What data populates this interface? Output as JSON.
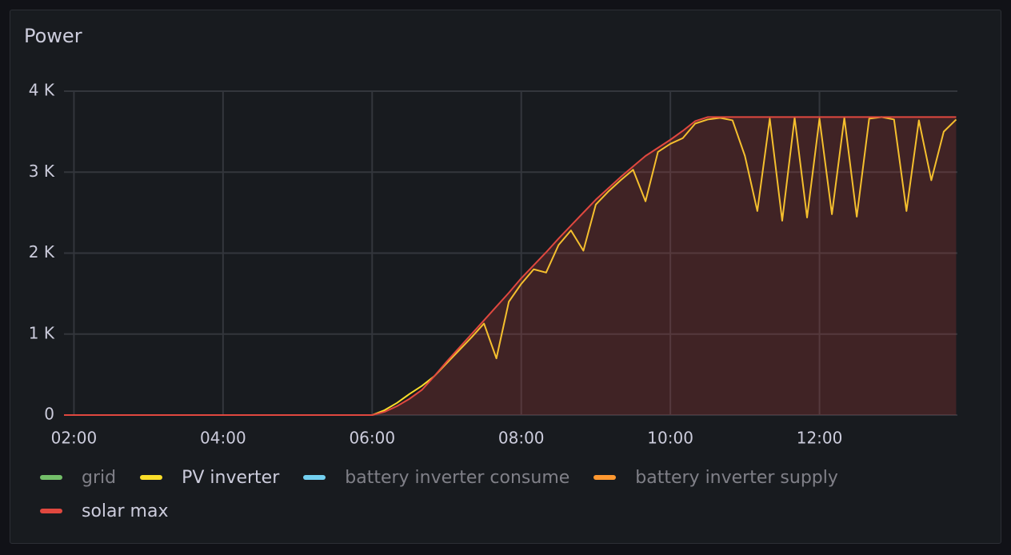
{
  "chart_data": {
    "type": "line",
    "title": "Power",
    "x": [
      "01:52",
      "06:00",
      "06:10",
      "06:20",
      "06:30",
      "06:40",
      "06:50",
      "07:00",
      "07:10",
      "07:20",
      "07:30",
      "07:40",
      "07:50",
      "08:00",
      "08:10",
      "08:20",
      "08:30",
      "08:40",
      "08:50",
      "09:00",
      "09:10",
      "09:20",
      "09:30",
      "09:40",
      "09:50",
      "10:00",
      "10:10",
      "10:20",
      "10:30",
      "10:40",
      "10:50",
      "11:00",
      "11:10",
      "11:20",
      "11:30",
      "11:40",
      "11:50",
      "12:00",
      "12:10",
      "12:20",
      "12:30",
      "12:40",
      "12:50",
      "13:00",
      "13:10",
      "13:20",
      "13:30",
      "13:40",
      "13:50"
    ],
    "series": [
      {
        "name": "grid",
        "color": "#73bf69",
        "hidden": true
      },
      {
        "name": "PV inverter",
        "color": "#fade2a",
        "values": [
          0,
          0,
          60,
          150,
          260,
          360,
          480,
          640,
          800,
          960,
          1130,
          700,
          1400,
          1620,
          1800,
          1760,
          2100,
          2280,
          2030,
          2600,
          2760,
          2900,
          3030,
          2640,
          3250,
          3350,
          3420,
          3600,
          3650,
          3670,
          3640,
          3200,
          2520,
          3660,
          2400,
          3670,
          2440,
          3660,
          2480,
          3670,
          2450,
          3660,
          3680,
          3650,
          2520,
          3640,
          2900,
          3500,
          3650
        ]
      },
      {
        "name": "battery inverter consume",
        "color": "#73d0f0",
        "hidden": true
      },
      {
        "name": "battery inverter supply",
        "color": "#ff9830",
        "hidden": true
      },
      {
        "name": "solar max",
        "color": "#e0483f",
        "fill": true,
        "values": [
          0,
          0,
          40,
          110,
          200,
          310,
          480,
          660,
          830,
          1000,
          1170,
          1340,
          1510,
          1690,
          1850,
          2010,
          2180,
          2340,
          2500,
          2660,
          2800,
          2940,
          3070,
          3200,
          3300,
          3400,
          3510,
          3630,
          3680,
          3680,
          3680,
          3680,
          3680,
          3680,
          3680,
          3680,
          3680,
          3680,
          3680,
          3680,
          3680,
          3680,
          3680,
          3680,
          3680,
          3680,
          3680,
          3680,
          3680
        ]
      }
    ],
    "xlim": [
      "01:52",
      "13:51"
    ],
    "xticks": [
      "02:00",
      "04:00",
      "06:00",
      "08:00",
      "10:00",
      "12:00"
    ],
    "ylim": [
      0,
      4000
    ],
    "yticks": [
      0,
      {
        "value": 1000,
        "label": "1 K"
      },
      {
        "value": 2000,
        "label": "2 K"
      },
      {
        "value": 3000,
        "label": "3 K"
      },
      {
        "value": 4000,
        "label": "4 K"
      }
    ],
    "grid": true
  }
}
